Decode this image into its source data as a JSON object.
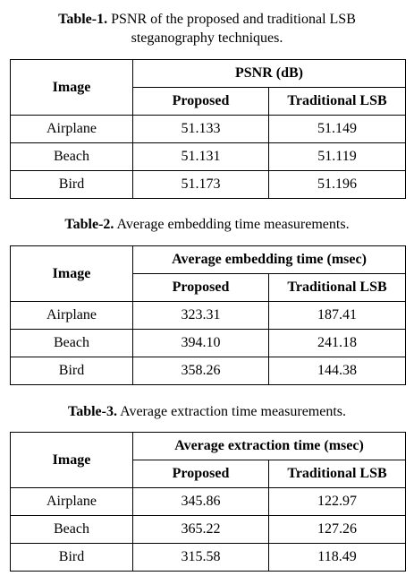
{
  "tables": [
    {
      "caption_label": "Table-1.",
      "caption_text": " PSNR of the proposed and traditional LSB steganography techniques.",
      "row_header": "Image",
      "group_header": "PSNR (dB)",
      "columns": [
        "Proposed",
        "Traditional LSB"
      ],
      "rows": [
        {
          "image": "Airplane",
          "proposed": "51.133",
          "traditional": "51.149"
        },
        {
          "image": "Beach",
          "proposed": "51.131",
          "traditional": "51.119"
        },
        {
          "image": "Bird",
          "proposed": "51.173",
          "traditional": "51.196"
        }
      ]
    },
    {
      "caption_label": "Table-2.",
      "caption_text": " Average embedding time measurements.",
      "row_header": "Image",
      "group_header": "Average embedding time (msec)",
      "columns": [
        "Proposed",
        "Traditional LSB"
      ],
      "rows": [
        {
          "image": "Airplane",
          "proposed": "323.31",
          "traditional": "187.41"
        },
        {
          "image": "Beach",
          "proposed": "394.10",
          "traditional": "241.18"
        },
        {
          "image": "Bird",
          "proposed": "358.26",
          "traditional": "144.38"
        }
      ]
    },
    {
      "caption_label": "Table-3.",
      "caption_text": " Average extraction time measurements.",
      "row_header": "Image",
      "group_header": "Average extraction time (msec)",
      "columns": [
        "Proposed",
        "Traditional LSB"
      ],
      "rows": [
        {
          "image": "Airplane",
          "proposed": "345.86",
          "traditional": "122.97"
        },
        {
          "image": "Beach",
          "proposed": "365.22",
          "traditional": "127.26"
        },
        {
          "image": "Bird",
          "proposed": "315.58",
          "traditional": "118.49"
        }
      ]
    }
  ]
}
